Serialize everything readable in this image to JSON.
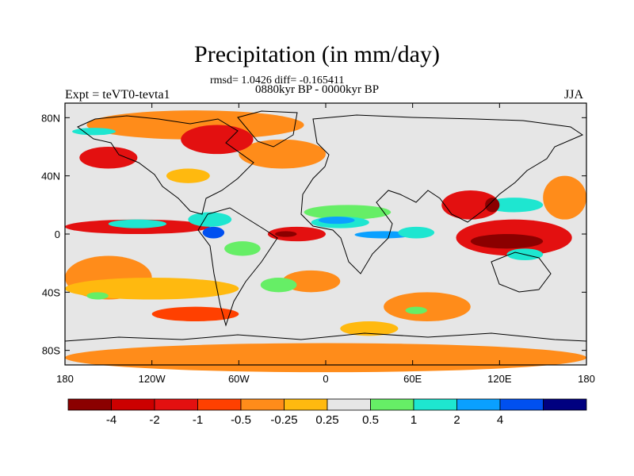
{
  "title": "Precipitation (in mm/day)",
  "stats_line": "rmsd= 1.0426 diff= -0.165411",
  "period_line": "0880kyr BP - 0000kyr BP",
  "experiment": "Expt = teVT0-tevta1",
  "season": "JJA",
  "map": {
    "lon_range": [
      -180,
      180
    ],
    "lat_range": [
      -90,
      90
    ],
    "background_color": "#e6e6e6",
    "lat_ticks": [
      {
        "value": 80,
        "label": "80N"
      },
      {
        "value": 40,
        "label": "40N"
      },
      {
        "value": 0,
        "label": "0"
      },
      {
        "value": -40,
        "label": "40S"
      },
      {
        "value": -80,
        "label": "80S"
      }
    ],
    "lon_ticks": [
      {
        "value": -180,
        "label": "180"
      },
      {
        "value": -120,
        "label": "120W"
      },
      {
        "value": -60,
        "label": "60W"
      },
      {
        "value": 0,
        "label": "0"
      },
      {
        "value": 60,
        "label": "60E"
      },
      {
        "value": 120,
        "label": "120E"
      },
      {
        "value": 180,
        "label": "180"
      }
    ],
    "regions": [
      {
        "name": "south-ocean-band-orange",
        "level": -0.5,
        "color": "#ff8c1a",
        "lon": -180,
        "lat": -75,
        "w": 360,
        "h": 20
      },
      {
        "name": "arctic-orange",
        "level": -0.5,
        "color": "#ff8c1a",
        "lon": -165,
        "lat": 85,
        "w": 150,
        "h": 20
      },
      {
        "name": "north-atlantic-orange",
        "level": -0.5,
        "color": "#ff8c1a",
        "lon": -60,
        "lat": 65,
        "w": 60,
        "h": 20
      },
      {
        "name": "canada-red",
        "level": -2,
        "color": "#e31010",
        "lon": -100,
        "lat": 75,
        "w": 50,
        "h": 20
      },
      {
        "name": "north-pacific-red",
        "level": -2,
        "color": "#e31010",
        "lon": -170,
        "lat": 60,
        "w": 40,
        "h": 15
      },
      {
        "name": "east-pacific-red",
        "level": -2,
        "color": "#e31010",
        "lon": -180,
        "lat": 10,
        "w": 100,
        "h": 10
      },
      {
        "name": "atlantic-itcz-red",
        "level": -2,
        "color": "#e31010",
        "lon": -40,
        "lat": 5,
        "w": 40,
        "h": 10
      },
      {
        "name": "indo-pacific-red",
        "level": -2,
        "color": "#e31010",
        "lon": 90,
        "lat": 10,
        "w": 80,
        "h": 25
      },
      {
        "name": "indonesia-dark-red",
        "level": -4,
        "color": "#8b0000",
        "lon": 100,
        "lat": 0,
        "w": 50,
        "h": 10
      },
      {
        "name": "south-asia-red",
        "level": -2,
        "color": "#e31010",
        "lon": 80,
        "lat": 30,
        "w": 40,
        "h": 20
      },
      {
        "name": "south-pacific-orange",
        "level": -0.5,
        "color": "#ff8c1a",
        "lon": -180,
        "lat": -15,
        "w": 60,
        "h": 30
      },
      {
        "name": "south-atlantic-orange",
        "level": -0.5,
        "color": "#ff8c1a",
        "lon": -30,
        "lat": -25,
        "w": 40,
        "h": 15
      },
      {
        "name": "indian-ocean-orange",
        "level": -0.5,
        "color": "#ff8c1a",
        "lon": 40,
        "lat": -40,
        "w": 60,
        "h": 20
      },
      {
        "name": "west-pacific-orange",
        "level": -0.5,
        "color": "#ff8c1a",
        "lon": 150,
        "lat": 40,
        "w": 30,
        "h": 30
      },
      {
        "name": "south-ocean-red",
        "level": -1,
        "color": "#ff4000",
        "lon": -120,
        "lat": -50,
        "w": 60,
        "h": 10
      },
      {
        "name": "central-pacific-light-orange",
        "level": -0.25,
        "color": "#ffb90f",
        "lon": -180,
        "lat": -30,
        "w": 120,
        "h": 15
      },
      {
        "name": "sahel-green",
        "level": 0.5,
        "color": "#66ee66",
        "lon": -15,
        "lat": 20,
        "w": 60,
        "h": 10
      },
      {
        "name": "central-africa-cyan",
        "level": 1,
        "color": "#1ee6d0",
        "lon": -10,
        "lat": 12,
        "w": 40,
        "h": 8
      },
      {
        "name": "west-africa-blue",
        "level": 2,
        "color": "#0aa0ff",
        "lon": -5,
        "lat": 12,
        "w": 25,
        "h": 5
      },
      {
        "name": "equatorial-atlantic-blue",
        "level": 2,
        "color": "#0aa0ff",
        "lon": 20,
        "lat": 2,
        "w": 40,
        "h": 5
      },
      {
        "name": "east-africa-cyan",
        "level": 1,
        "color": "#1ee6d0",
        "lon": 50,
        "lat": 5,
        "w": 25,
        "h": 8
      },
      {
        "name": "amazon-blue",
        "level": 4,
        "color": "#0050f0",
        "lon": -85,
        "lat": 5,
        "w": 15,
        "h": 8
      },
      {
        "name": "amazon-cyan",
        "level": 1,
        "color": "#1ee6d0",
        "lon": -95,
        "lat": 15,
        "w": 30,
        "h": 10
      },
      {
        "name": "south-america-green",
        "level": 0.5,
        "color": "#66ee66",
        "lon": -70,
        "lat": -5,
        "w": 25,
        "h": 10
      },
      {
        "name": "mid-pacific-cyan",
        "level": 1,
        "color": "#1ee6d0",
        "lon": -150,
        "lat": 10,
        "w": 40,
        "h": 6
      },
      {
        "name": "maritime-cyan",
        "level": 1,
        "color": "#1ee6d0",
        "lon": 110,
        "lat": 25,
        "w": 40,
        "h": 10
      },
      {
        "name": "australia-cyan",
        "level": 1,
        "color": "#1ee6d0",
        "lon": 125,
        "lat": -10,
        "w": 25,
        "h": 8
      },
      {
        "name": "arctic-cyan",
        "level": 1,
        "color": "#1ee6d0",
        "lon": -175,
        "lat": 73,
        "w": 30,
        "h": 5
      },
      {
        "name": "south-pacific-green",
        "level": 0.5,
        "color": "#66ee66",
        "lon": -165,
        "lat": -40,
        "w": 15,
        "h": 5
      },
      {
        "name": "south-atlantic-green",
        "level": 0.5,
        "color": "#66ee66",
        "lon": -45,
        "lat": -30,
        "w": 25,
        "h": 10
      },
      {
        "name": "southern-ocean-green",
        "level": 0.5,
        "color": "#66ee66",
        "lon": 55,
        "lat": -50,
        "w": 15,
        "h": 5
      },
      {
        "name": "east-asia-dark-red",
        "level": -4,
        "color": "#8b0000",
        "lon": 110,
        "lat": 25,
        "w": 10,
        "h": 10
      },
      {
        "name": "atlantic-dark-red",
        "level": -4,
        "color": "#8b0000",
        "lon": -35,
        "lat": 2,
        "w": 15,
        "h": 4
      },
      {
        "name": "sub-antarctic-light-orange",
        "level": -0.25,
        "color": "#ffb90f",
        "lon": 10,
        "lat": -60,
        "w": 40,
        "h": 10
      },
      {
        "name": "north-america-light-orange",
        "level": -0.25,
        "color": "#ffb90f",
        "lon": -110,
        "lat": 45,
        "w": 30,
        "h": 10
      }
    ]
  },
  "colorbar": {
    "colors": [
      "#8b0000",
      "#cc0000",
      "#e31010",
      "#ff4000",
      "#ff8c1a",
      "#ffb90f",
      "#e6e6e6",
      "#66ee66",
      "#1ee6d0",
      "#0aa0ff",
      "#0050f0",
      "#000080"
    ],
    "labels": [
      "-4",
      "-2",
      "-1",
      "-0.5",
      "-0.25",
      "0.25",
      "0.5",
      "1",
      "2",
      "4"
    ]
  }
}
